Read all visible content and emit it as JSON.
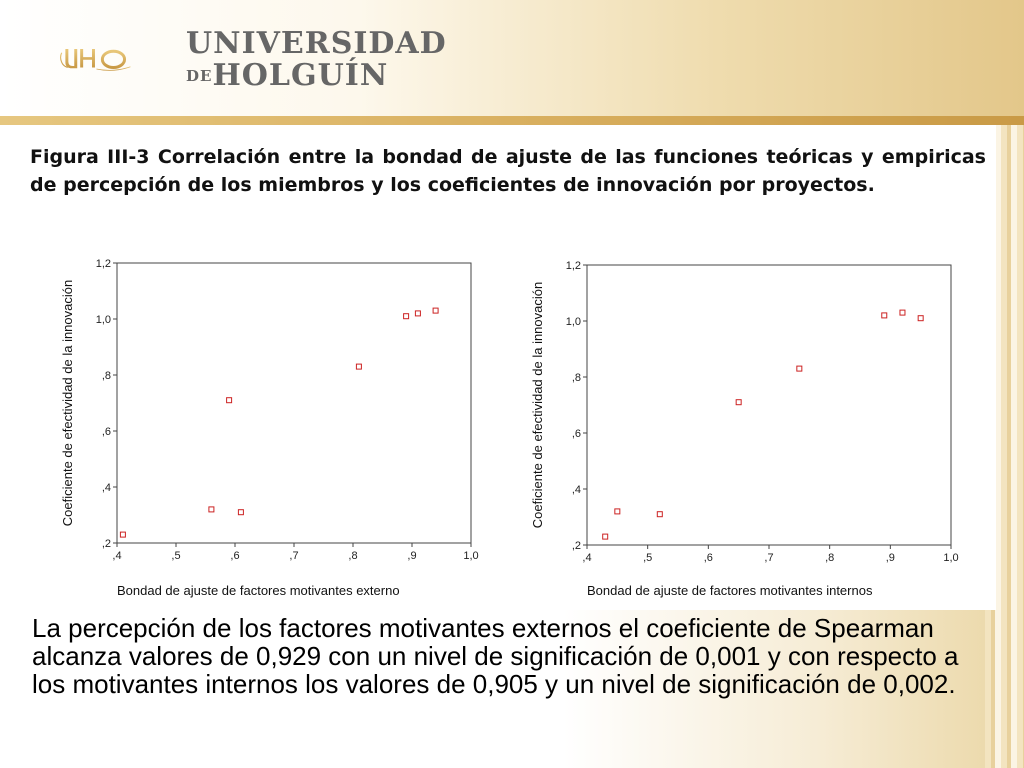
{
  "logo": {
    "name": "UHO",
    "line1": "UNIVERSIDAD",
    "line2_prefix": "DE",
    "line2": "HOLGUÍN"
  },
  "figure_title": "Figura III-3 Correlación entre la bondad de ajuste de las funciones teóricas y empiricas de percepción de los miembros y los coeficientes de innovación por proyectos.",
  "caption": "La percepción de los factores motivantes externos el coeficiente de Spearman alcanza valores de 0,929 con un nivel de significación de 0,001 y con respecto a los motivantes internos los valores de 0,905 y un nivel de significación de 0,002.",
  "colors": {
    "accent": "#c99a46",
    "marker": "#cc2222"
  },
  "chart_data": [
    {
      "type": "scatter",
      "xlabel": "Bondad de ajuste de factores motivantes externo",
      "ylabel": "Coeficiente de efectividad de la innovación",
      "xlim": [
        0.4,
        1.0
      ],
      "ylim": [
        0.2,
        1.2
      ],
      "xticks": [
        ",4",
        ",5",
        ",6",
        ",7",
        ",8",
        ",9",
        "1,0"
      ],
      "yticks": [
        ",2",
        ",4",
        ",6",
        ",8",
        "1,0",
        "1,2"
      ],
      "points": [
        {
          "x": 0.41,
          "y": 0.23
        },
        {
          "x": 0.56,
          "y": 0.32
        },
        {
          "x": 0.59,
          "y": 0.71
        },
        {
          "x": 0.61,
          "y": 0.31
        },
        {
          "x": 0.81,
          "y": 0.83
        },
        {
          "x": 0.89,
          "y": 1.01
        },
        {
          "x": 0.91,
          "y": 1.02
        },
        {
          "x": 0.94,
          "y": 1.03
        }
      ]
    },
    {
      "type": "scatter",
      "xlabel": "Bondad de ajuste de factores motivantes internos",
      "ylabel": "Coeficiente de efectividad de la innovación",
      "xlim": [
        0.4,
        1.0
      ],
      "ylim": [
        0.2,
        1.2
      ],
      "xticks": [
        ",4",
        ",5",
        ",6",
        ",7",
        ",8",
        ",9",
        "1,0"
      ],
      "yticks": [
        ",2",
        ",4",
        ",6",
        ",8",
        "1,0",
        "1,2"
      ],
      "points": [
        {
          "x": 0.43,
          "y": 0.23
        },
        {
          "x": 0.45,
          "y": 0.32
        },
        {
          "x": 0.52,
          "y": 0.31
        },
        {
          "x": 0.65,
          "y": 0.71
        },
        {
          "x": 0.75,
          "y": 0.83
        },
        {
          "x": 0.89,
          "y": 1.02
        },
        {
          "x": 0.92,
          "y": 1.03
        },
        {
          "x": 0.95,
          "y": 1.01
        }
      ]
    }
  ]
}
